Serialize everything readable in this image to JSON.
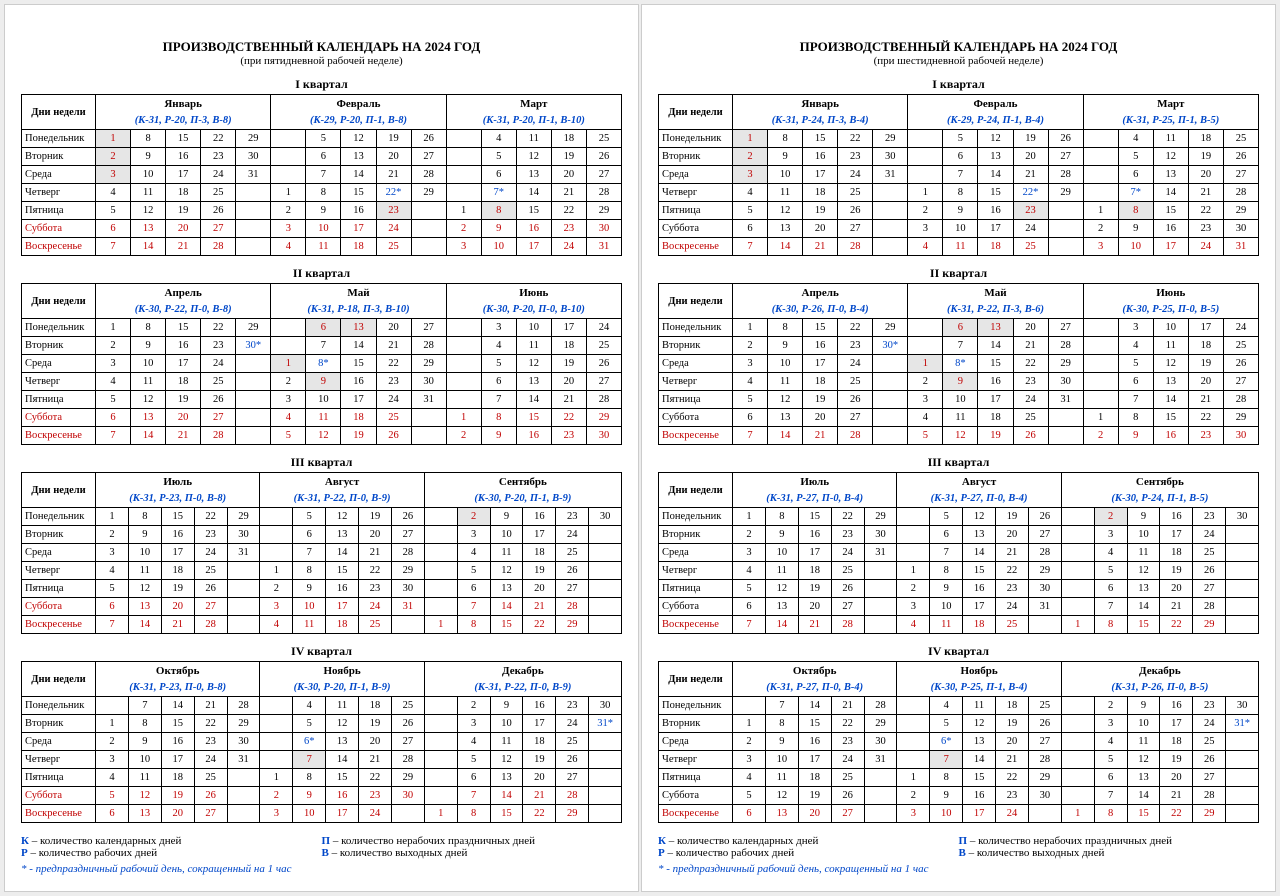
{
  "dows": [
    "Понедельник",
    "Вторник",
    "Среда",
    "Четверг",
    "Пятница",
    "Суббота",
    "Воскресенье"
  ],
  "legend": {
    "k": "К – количество календарных дней",
    "p": "Р – количество рабочих дней",
    "pr": "П – количество нерабочих праздничных дней",
    "v": "В – количество выходных дней",
    "note": "* - предпраздничный рабочий день, сокращенный на 1 час"
  },
  "pages": [
    {
      "title": "ПРОИЗВОДСТВЕННЫЙ КАЛЕНДАРЬ НА 2024 ГОД",
      "subtitle": "(при пятидневной рабочей неделе)",
      "redSat": true,
      "quarters": [
        {
          "title": "I квартал",
          "months": [
            {
              "name": "Январь",
              "stats": "(К-31, Р-20, П-3, В-8)",
              "start": 1,
              "days": 31,
              "H": [
                1,
                2,
                3
              ],
              "P": []
            },
            {
              "name": "Февраль",
              "stats": "(К-29, Р-20, П-1, В-8)",
              "start": 4,
              "days": 29,
              "H": [
                23
              ],
              "P": [
                22
              ]
            },
            {
              "name": "Март",
              "stats": "(К-31, Р-20, П-1, В-10)",
              "start": 5,
              "days": 31,
              "H": [
                8
              ],
              "P": [
                7
              ]
            }
          ]
        },
        {
          "title": "II квартал",
          "months": [
            {
              "name": "Апрель",
              "stats": "(К-30, Р-22, П-0, В-8)",
              "start": 1,
              "days": 30,
              "H": [],
              "P": [
                30
              ]
            },
            {
              "name": "Май",
              "stats": "(К-31, Р-18, П-3, В-10)",
              "start": 3,
              "days": 31,
              "H": [
                1,
                6,
                13,
                9
              ],
              "P": [
                8
              ]
            },
            {
              "name": "Июнь",
              "stats": "(К-30, Р-20, П-0, В-10)",
              "start": 6,
              "days": 30,
              "H": [],
              "P": []
            }
          ]
        },
        {
          "title": "III квартал",
          "months": [
            {
              "name": "Июль",
              "stats": "(К-31, Р-23, П-0, В-8)",
              "start": 1,
              "days": 31,
              "H": [],
              "P": []
            },
            {
              "name": "Август",
              "stats": "(К-31, Р-22, П-0, В-9)",
              "start": 4,
              "days": 31,
              "H": [],
              "P": []
            },
            {
              "name": "Сентябрь",
              "stats": "(К-30, Р-20, П-1, В-9)",
              "start": 7,
              "days": 30,
              "H": [
                2
              ],
              "P": []
            }
          ]
        },
        {
          "title": "IV квартал",
          "months": [
            {
              "name": "Октябрь",
              "stats": "(К-31, Р-23, П-0, В-8)",
              "start": 2,
              "days": 31,
              "H": [],
              "P": []
            },
            {
              "name": "Ноябрь",
              "stats": "(К-30, Р-20, П-1, В-9)",
              "start": 5,
              "days": 30,
              "H": [
                7
              ],
              "P": [
                6
              ]
            },
            {
              "name": "Декабрь",
              "stats": "(К-31, Р-22, П-0, В-9)",
              "start": 7,
              "days": 31,
              "H": [],
              "P": [
                31
              ]
            }
          ]
        }
      ]
    },
    {
      "title": "ПРОИЗВОДСТВЕННЫЙ КАЛЕНДАРЬ НА 2024 ГОД",
      "subtitle": "(при шестидневной рабочей неделе)",
      "redSat": false,
      "quarters": [
        {
          "title": "I квартал",
          "months": [
            {
              "name": "Январь",
              "stats": "(К-31, Р-24, П-3, В-4)",
              "start": 1,
              "days": 31,
              "H": [
                1,
                2,
                3
              ],
              "P": []
            },
            {
              "name": "Февраль",
              "stats": "(К-29, Р-24, П-1, В-4)",
              "start": 4,
              "days": 29,
              "H": [
                23
              ],
              "P": [
                22
              ]
            },
            {
              "name": "Март",
              "stats": "(К-31, Р-25, П-1, В-5)",
              "start": 5,
              "days": 31,
              "H": [
                8
              ],
              "P": [
                7
              ]
            }
          ]
        },
        {
          "title": "II квартал",
          "months": [
            {
              "name": "Апрель",
              "stats": "(К-30, Р-26, П-0, В-4)",
              "start": 1,
              "days": 30,
              "H": [],
              "P": [
                30
              ]
            },
            {
              "name": "Май",
              "stats": "(К-31, Р-22, П-3, В-6)",
              "start": 3,
              "days": 31,
              "H": [
                1,
                6,
                13,
                9
              ],
              "P": [
                8
              ]
            },
            {
              "name": "Июнь",
              "stats": "(К-30, Р-25, П-0, В-5)",
              "start": 6,
              "days": 30,
              "H": [],
              "P": []
            }
          ]
        },
        {
          "title": "III квартал",
          "months": [
            {
              "name": "Июль",
              "stats": "(К-31, Р-27, П-0, В-4)",
              "start": 1,
              "days": 31,
              "H": [],
              "P": []
            },
            {
              "name": "Август",
              "stats": "(К-31, Р-27, П-0, В-4)",
              "start": 4,
              "days": 31,
              "H": [],
              "P": []
            },
            {
              "name": "Сентябрь",
              "stats": "(К-30, Р-24, П-1, В-5)",
              "start": 7,
              "days": 30,
              "H": [
                2
              ],
              "P": []
            }
          ]
        },
        {
          "title": "IV квартал",
          "months": [
            {
              "name": "Октябрь",
              "stats": "(К-31, Р-27, П-0, В-4)",
              "start": 2,
              "days": 31,
              "H": [],
              "P": []
            },
            {
              "name": "Ноябрь",
              "stats": "(К-30, Р-25, П-1, В-4)",
              "start": 5,
              "days": 30,
              "H": [
                7
              ],
              "P": [
                6
              ]
            },
            {
              "name": "Декабрь",
              "stats": "(К-31, Р-26, П-0, В-5)",
              "start": 7,
              "days": 31,
              "H": [],
              "P": [
                31
              ]
            }
          ]
        }
      ]
    }
  ]
}
